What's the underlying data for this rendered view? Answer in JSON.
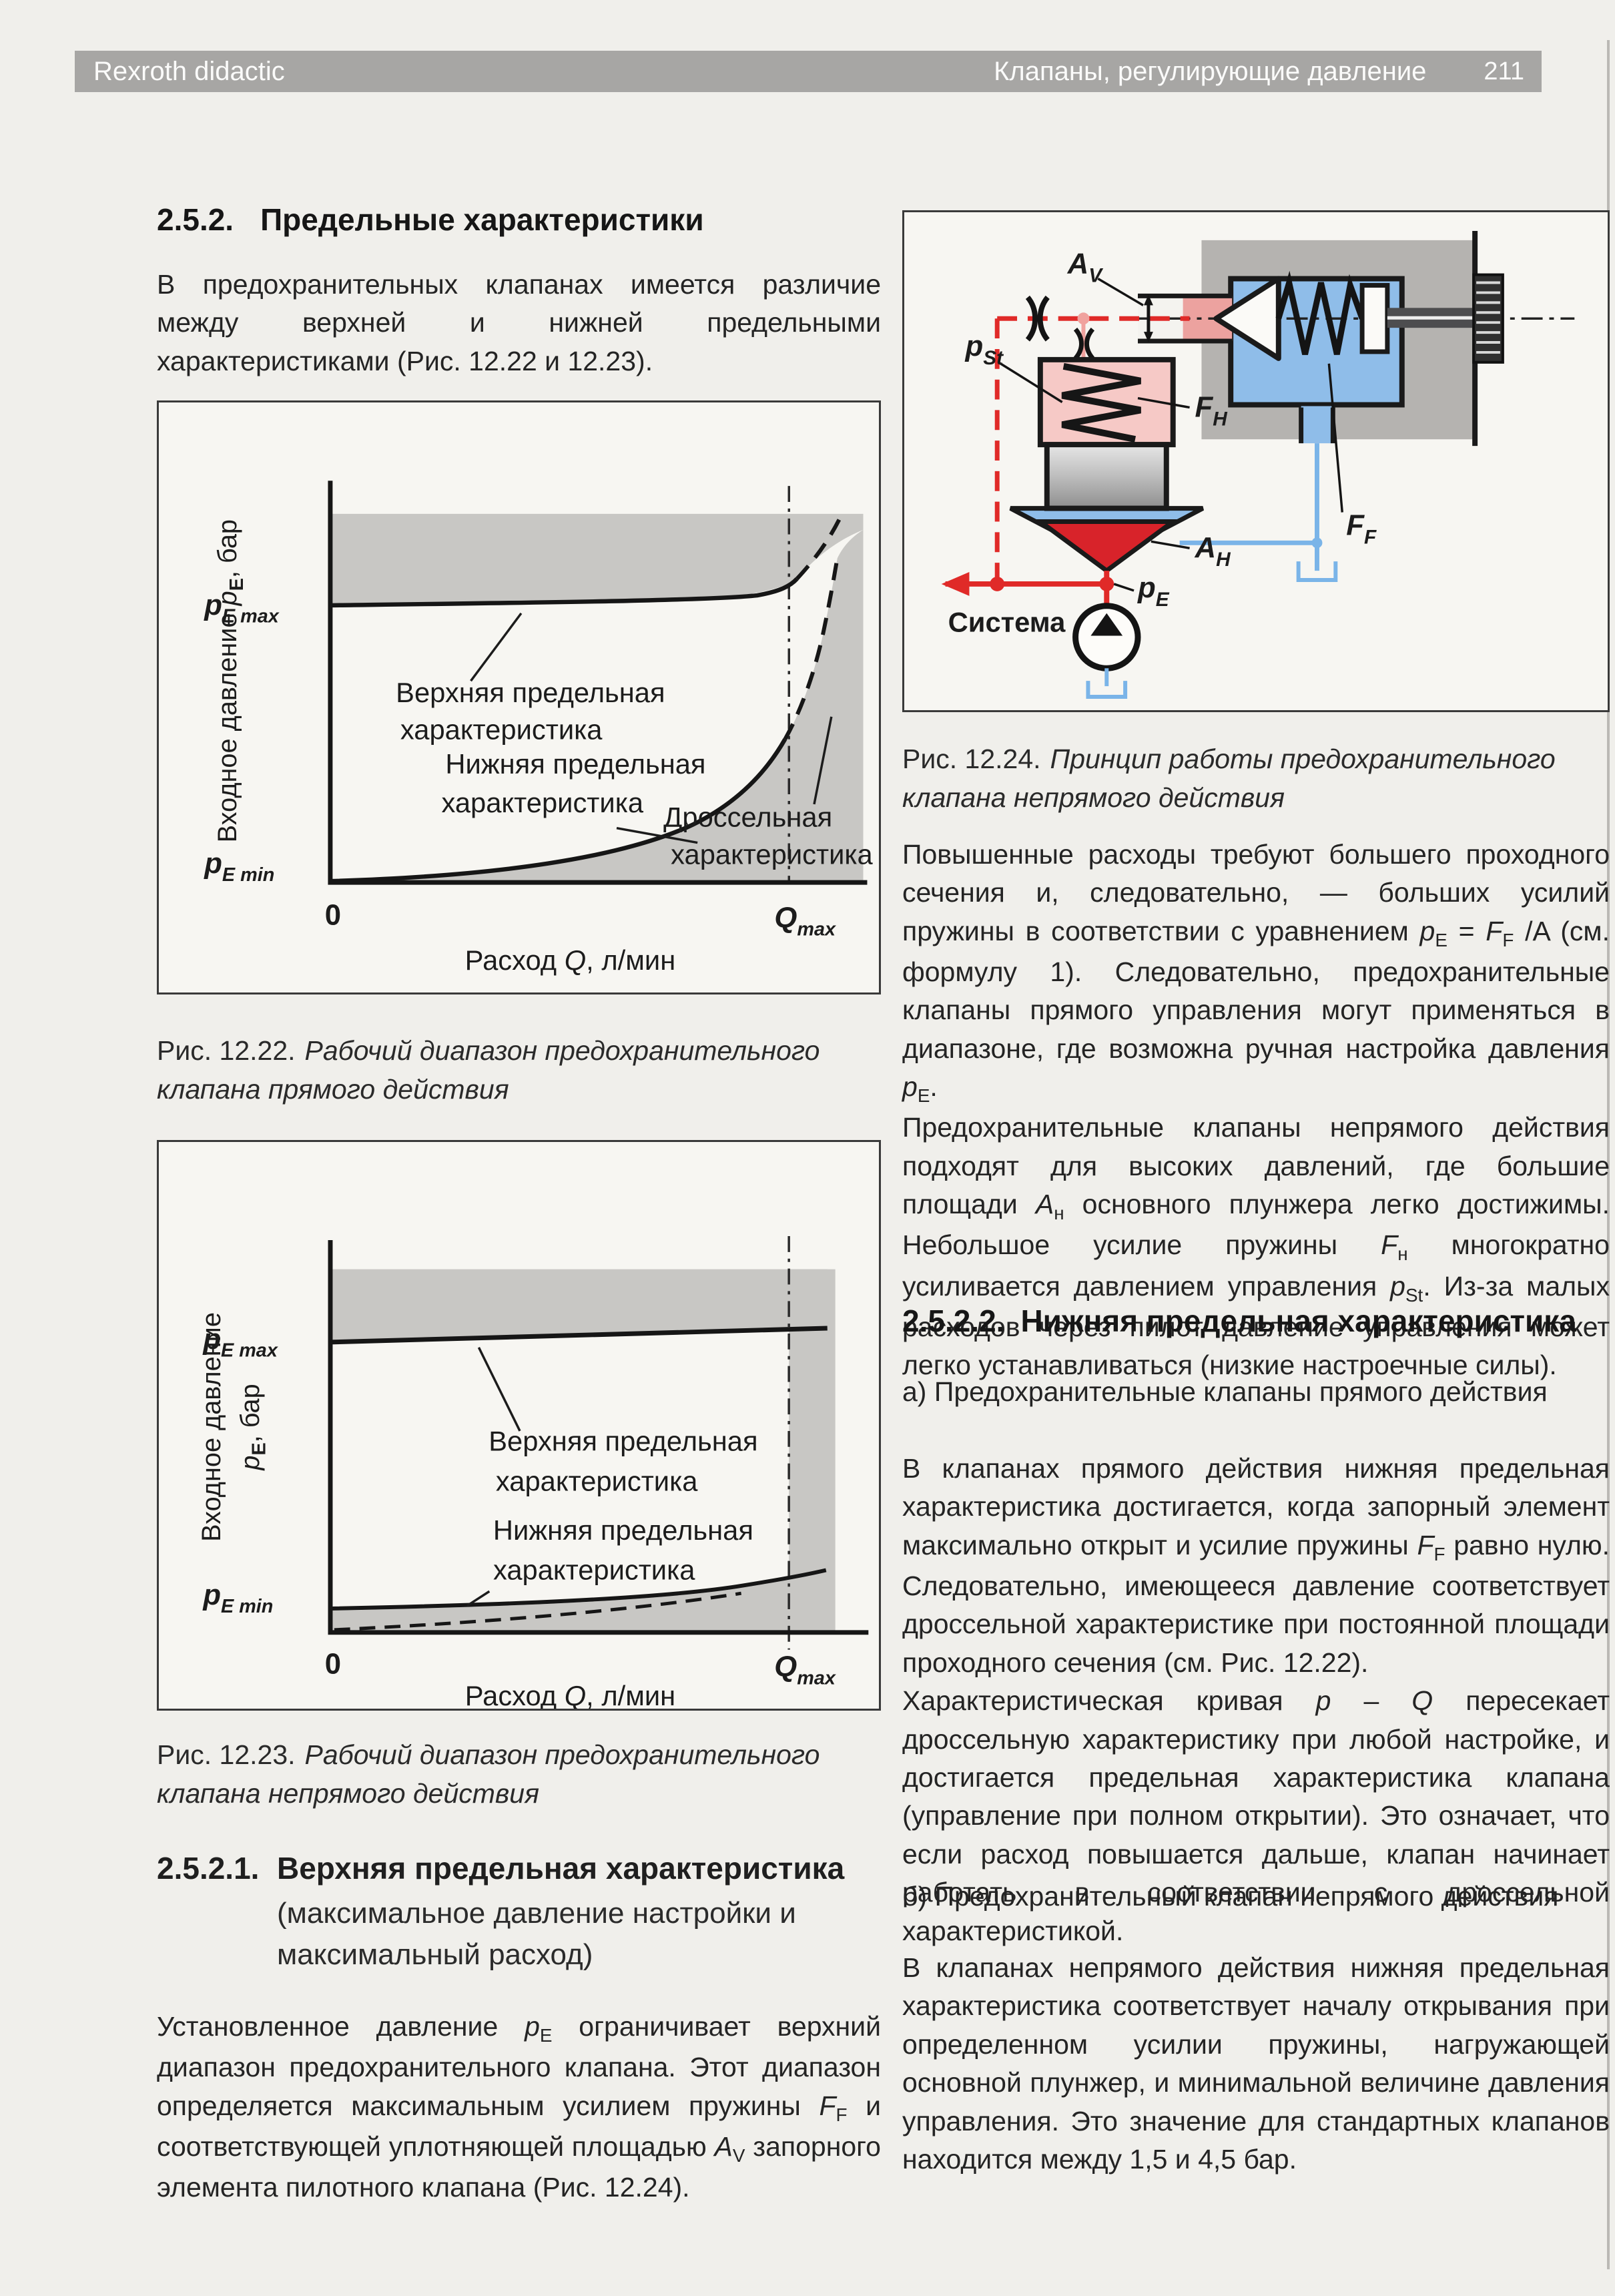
{
  "page": {
    "number": "211",
    "background": "#f0efeb"
  },
  "header": {
    "left": "Rexroth didactic",
    "right": "Клапаны, регулирующие давление",
    "page_number": "211",
    "bar_color": "#a7a6a4"
  },
  "section": {
    "number": "2.5.2.",
    "title": "Предельные характеристики"
  },
  "intro": "В предохранительных клапанах имеется различие между верхней и нижней предельными характеристиками (Рис. 12.22 и 12.23).",
  "fig1222": {
    "caption_label": "Рис. 12.22.",
    "caption_text": "Рабочий диапазон предохранительного клапана прямого действия",
    "labels": {
      "upper1": "Верхняя предельная",
      "upper2": "характеристика",
      "throttle1": "Дроссельная",
      "throttle2": "характеристика",
      "lower1": "Нижняя предельная",
      "lower2": "характеристика"
    },
    "axis": {
      "pemax_main": "p",
      "pemax_sub": "E max",
      "pemin_main": "p",
      "pemin_sub": "E min",
      "zero": "0",
      "qmax_main": "Q",
      "qmax_sub": "max",
      "ylabel_pre": "Входное давление ",
      "ylabel_p": "p",
      "ylabel_sub": "E",
      "ylabel_post": ", бар",
      "xlabel_pre": "Расход ",
      "xlabel_q": "Q",
      "xlabel_post": ", л/мин"
    },
    "chart_data": {
      "type": "line",
      "title": "Рабочий диапазон предохранительного клапана прямого действия",
      "xlabel": "Расход Q, л/мин",
      "ylabel": "Входное давление pE, бар",
      "x_ticks": [
        "0",
        "Qmax"
      ],
      "y_ticks": [
        "pE min",
        "pE max"
      ],
      "grid": false,
      "series": [
        {
          "name": "Верхняя предельная характеристика",
          "style": "solid",
          "shape": "почти горизонтальная линия у pE max с лёгким подъёмом к Qmax, штриховое продолжение круто вверх за Qmax"
        },
        {
          "name": "Дроссельная характеристика",
          "style": "dashed",
          "shape": "крутая штриховая кривая, проходящая вблизи Qmax между характеристиками"
        },
        {
          "name": "Нижняя предельная характеристика",
          "style": "solid",
          "shape": "выпуклая кривая от точки (0, pE min) вверх к области Qmax"
        }
      ],
      "shading": "серые зоны выше верхней характеристики, ниже/правее нижней характеристики и правее Qmax"
    }
  },
  "fig1223": {
    "caption_label": "Рис. 12.23.",
    "caption_text": "Рабочий диапазон предохранительного клапана непрямого действия",
    "labels": {
      "upper1": "Верхняя предельная",
      "upper2": "характеристика",
      "lower1": "Нижняя предельная",
      "lower2": "характеристика"
    },
    "axis": {
      "pemax_main": "p",
      "pemax_sub": "E max",
      "pemin_main": "p",
      "pemin_sub": "E min",
      "zero": "0",
      "qmax_main": "Q",
      "qmax_sub": "max",
      "ylabel_line1": "Входное давление",
      "ylabel_p": "p",
      "ylabel_sub": "E",
      "ylabel_post": ", бар",
      "xlabel_pre": "Расход ",
      "xlabel_q": "Q",
      "xlabel_post": ", л/мин"
    },
    "chart_data": {
      "type": "line",
      "title": "Рабочий диапазон предохранительного клапана непрямого действия",
      "xlabel": "Расход Q, л/мин",
      "ylabel": "Входное давление pE, бар",
      "x_ticks": [
        "0",
        "Qmax"
      ],
      "y_ticks": [
        "pE min",
        "pE max"
      ],
      "grid": false,
      "series": [
        {
          "name": "Верхняя предельная характеристика",
          "style": "solid",
          "shape": "почти горизонтальная линия чуть ниже pE max по всей ширине до Qmax"
        },
        {
          "name": "Нижняя предельная характеристика",
          "style": "solid",
          "shape": "линия чуть выше pE min, плавно поднимающаяся к Qmax; под ней штриховая линия от нуля"
        }
      ],
      "shading": "серые зоны выше верхней линии, ниже нижней линии и правее Qmax"
    }
  },
  "h2521": {
    "number": "2.5.2.1.",
    "title": "Верхняя предельная характеристика",
    "subtitle1": "(максимальное давление настройки и",
    "subtitle2": "максимальный расход)"
  },
  "para_setpressure": [
    {
      "t": "Установленное давление "
    },
    {
      "t": "p",
      "i": true
    },
    {
      "s": "E"
    },
    {
      "t": " ограничивает верхний диапазон предохранительного клапана. Этот диапазон определяется максимальным усилием пружины "
    },
    {
      "t": "F",
      "i": true
    },
    {
      "s": "F"
    },
    {
      "t": " и соответствующей уплотняющей площадью "
    },
    {
      "t": "A",
      "i": true
    },
    {
      "s": "V"
    },
    {
      "t": " запорного элемента пилотного клапана (Рис. 12.24)."
    }
  ],
  "fig1224": {
    "caption_label": "Рис. 12.24.",
    "caption_text": "Принцип работы предохранительного клапана непрямого действия",
    "labels": {
      "av_main": "A",
      "av_sub": "V",
      "pst_main": "p",
      "pst_sub": "St",
      "fh_main": "F",
      "fh_sub": "H",
      "ff_main": "F",
      "ff_sub": "F",
      "ah_main": "A",
      "ah_sub": "H",
      "pe_main": "p",
      "pe_sub": "E",
      "system": "Система"
    },
    "colors": {
      "red": "#e02a28",
      "pale_red": "#f0a29e",
      "pink": "#f6c9c6",
      "inlet_pink": "#eca29f",
      "blue": "#8fbde9",
      "light_blue": "#7ab4e8",
      "housing_gray": "#b5b3b0",
      "cone_red": "#d8232a"
    }
  },
  "r_para1": [
    {
      "t": "Повышенные расходы требуют  большего проходного сечения и, следовательно, — больших усилий пружины в соответствии с уравнением "
    },
    {
      "t": "p",
      "i": true
    },
    {
      "s": "E"
    },
    {
      "t": " = "
    },
    {
      "t": "F",
      "i": true
    },
    {
      "s": "F"
    },
    {
      "t": " /A (см. формулу 1). Следовательно, предохранительные клапаны прямого управления могут применяться в диапазоне, где возможна ручная настройка давления "
    },
    {
      "t": "p",
      "i": true
    },
    {
      "s": "E"
    },
    {
      "t": "."
    }
  ],
  "r_para2": [
    {
      "t": "Предохранительные клапаны непрямого действия подходят для высоких давлений, где большие площади "
    },
    {
      "t": "A",
      "i": true
    },
    {
      "s": "н"
    },
    {
      "t": " основного плунжера легко достижимы. Небольшое усилие пружины "
    },
    {
      "t": "F",
      "i": true
    },
    {
      "s": "н"
    },
    {
      "t": " многократно усиливается давлением управления "
    },
    {
      "t": "p",
      "i": true
    },
    {
      "s": "St"
    },
    {
      "t": ". Из-за малых расходов через пилот давление управления может легко устанавливаться (низкие настроечные силы)."
    }
  ],
  "h2522": {
    "number": "2.5.2.2.",
    "title": "Нижняя предельная характеристика"
  },
  "item_a": "а) Предохранительные клапаны прямого действия",
  "r_para3": [
    {
      "t": "В клапанах прямого действия нижняя предельная характеристика достигается, когда запорный элемент максимально открыт и усилие пружины "
    },
    {
      "t": "F",
      "i": true
    },
    {
      "s": "F"
    },
    {
      "t": " равно нулю. Следовательно, имеющееся давление соответствует дроссельной характеристике при постоянной площади проходного сечения (см. Рис. 12.22)."
    }
  ],
  "r_para4": [
    {
      "t": "Характеристическая кривая "
    },
    {
      "t": "p",
      "i": true
    },
    {
      "t": " – "
    },
    {
      "t": "Q",
      "i": true
    },
    {
      "t": " пересекает дроссельную характеристику при любой настройке, и достигается предельная характеристика клапана (управление при полном открытии). Это означает, что если расход повышается дальше, клапан начинает работать в соответствии с дроссельной характеристикой."
    }
  ],
  "item_b": "б) Предохранительный клапан непрямого действия",
  "r_para5": "В клапанах непрямого действия нижняя предельная характеристика соответствует началу открывания при определенном усилии пружины, нагружающей основной плунжер, и минимальной величине давления управления. Это значение для стандартных клапанов находится между 1,5 и 4,5 бар."
}
